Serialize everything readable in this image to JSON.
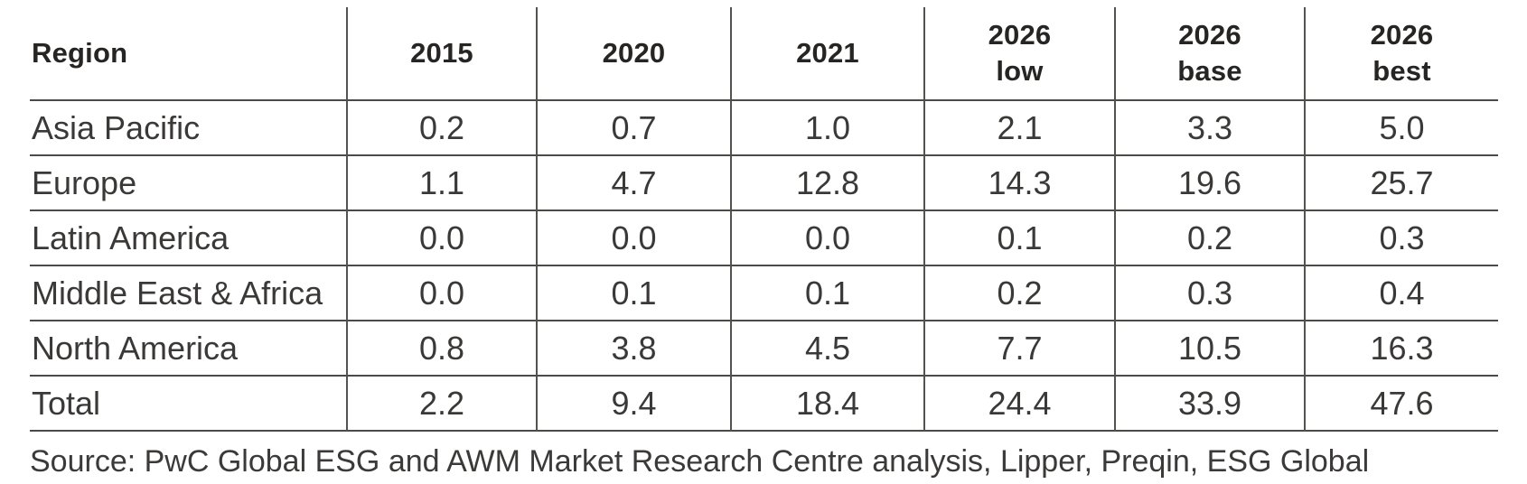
{
  "table": {
    "columns": [
      {
        "label": "Region",
        "sublabel": ""
      },
      {
        "label": "2015",
        "sublabel": ""
      },
      {
        "label": "2020",
        "sublabel": ""
      },
      {
        "label": "2021",
        "sublabel": ""
      },
      {
        "label": "2026",
        "sublabel": "low"
      },
      {
        "label": "2026",
        "sublabel": "base"
      },
      {
        "label": "2026",
        "sublabel": "best"
      }
    ],
    "rows": [
      {
        "region": "Asia Pacific",
        "values": [
          "0.2",
          "0.7",
          "1.0",
          "2.1",
          "3.3",
          "5.0"
        ]
      },
      {
        "region": "Europe",
        "values": [
          "1.1",
          "4.7",
          "12.8",
          "14.3",
          "19.6",
          "25.7"
        ]
      },
      {
        "region": "Latin America",
        "values": [
          "0.0",
          "0.0",
          "0.0",
          "0.1",
          "0.2",
          "0.3"
        ]
      },
      {
        "region": "Middle East & Africa",
        "values": [
          "0.0",
          "0.1",
          "0.1",
          "0.2",
          "0.3",
          "0.4"
        ]
      },
      {
        "region": "North America",
        "values": [
          "0.8",
          "3.8",
          "4.5",
          "7.7",
          "10.5",
          "16.3"
        ]
      },
      {
        "region": "Total",
        "values": [
          "2.2",
          "9.4",
          "18.4",
          "24.4",
          "33.9",
          "47.6"
        ]
      }
    ],
    "source": "Source: PwC Global ESG and AWM Market Research Centre analysis, Lipper, Preqin, ESG Global"
  },
  "colors": {
    "grid_line": "#4a4a48",
    "header_text": "#262524",
    "body_text": "#3a3938",
    "background": "#ffffff"
  },
  "chart_data": {
    "type": "table",
    "title": "",
    "columns": [
      "Region",
      "2015",
      "2020",
      "2021",
      "2026 low",
      "2026 base",
      "2026 best"
    ],
    "rows": [
      {
        "region": "Asia Pacific",
        "values": [
          0.2,
          0.7,
          1.0,
          2.1,
          3.3,
          5.0
        ]
      },
      {
        "region": "Europe",
        "values": [
          1.1,
          4.7,
          12.8,
          14.3,
          19.6,
          25.7
        ]
      },
      {
        "region": "Latin America",
        "values": [
          0.0,
          0.0,
          0.0,
          0.1,
          0.2,
          0.3
        ]
      },
      {
        "region": "Middle East & Africa",
        "values": [
          0.0,
          0.1,
          0.1,
          0.2,
          0.3,
          0.4
        ]
      },
      {
        "region": "North America",
        "values": [
          0.8,
          3.8,
          4.5,
          7.7,
          10.5,
          16.3
        ]
      },
      {
        "region": "Total",
        "values": [
          2.2,
          9.4,
          18.4,
          24.4,
          33.9,
          47.6
        ]
      }
    ],
    "source": "Source: PwC Global ESG and AWM Market Research Centre analysis, Lipper, Preqin, ESG Global",
    "layout": {
      "grid": "internal-lines-only",
      "header_bold": true,
      "numeric_align": "center"
    }
  }
}
